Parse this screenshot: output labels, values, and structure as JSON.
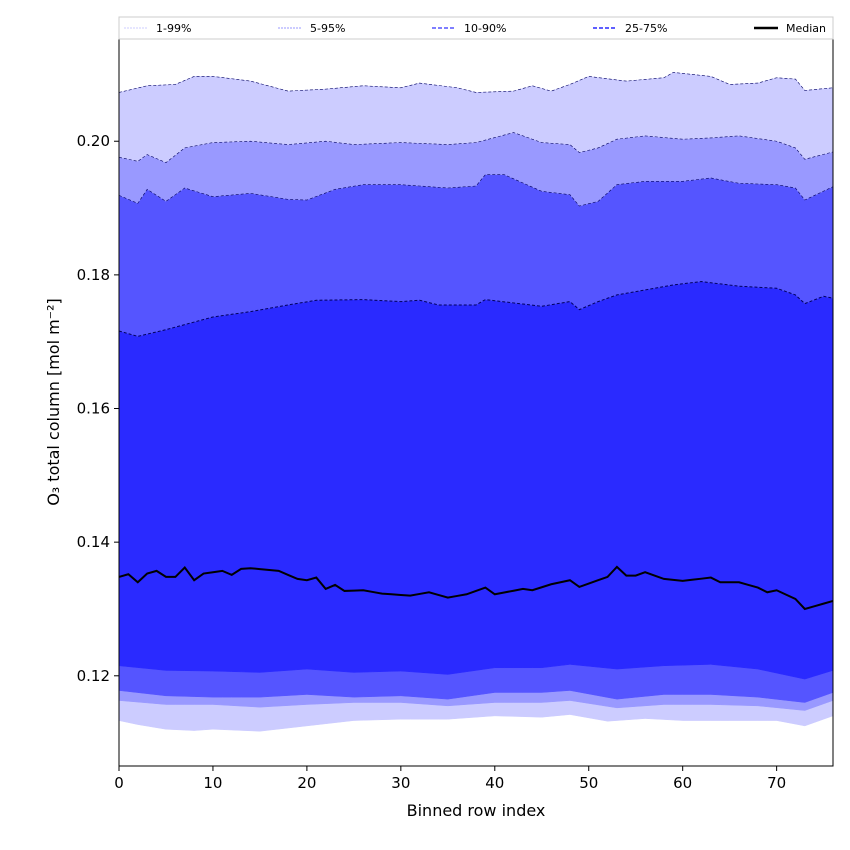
{
  "chart_data": {
    "type": "area",
    "xlabel": "Binned row index",
    "ylabel": "O₃ total column [mol m⁻²]",
    "xlim": [
      0,
      76
    ],
    "ylim": [
      0.1065,
      0.2153
    ],
    "xticks": [
      0,
      10,
      20,
      30,
      40,
      50,
      60,
      70
    ],
    "xtick_labels": [
      "0",
      "10",
      "20",
      "30",
      "40",
      "50",
      "60",
      "70"
    ],
    "yticks": [
      0.12,
      0.14,
      0.16,
      0.18,
      0.2
    ],
    "ytick_labels": [
      "0.12",
      "0.14",
      "0.16",
      "0.18",
      "0.20"
    ],
    "grid": false,
    "legend_placement": "top",
    "legend": [
      {
        "label": "1-99%",
        "color": "#ccccff",
        "style": "dashed"
      },
      {
        "label": "5-95%",
        "color": "#9999ff",
        "style": "dashed"
      },
      {
        "label": "10-90%",
        "color": "#5555ff",
        "style": "dashed"
      },
      {
        "label": "25-75%",
        "color": "#2a2aff",
        "style": "dashed"
      },
      {
        "label": "Median",
        "color": "#000000",
        "style": "solid"
      }
    ],
    "band_colors": {
      "1-99": "#ccccff",
      "5-95": "#9999ff",
      "10-90": "#5555ff",
      "25-75": "#2a2aff"
    },
    "series": {
      "p1": [
        [
          0,
          0.1133
        ],
        [
          2,
          0.1127
        ],
        [
          5,
          0.112
        ],
        [
          8,
          0.1118
        ],
        [
          10,
          0.112
        ],
        [
          15,
          0.1117
        ],
        [
          20,
          0.1125
        ],
        [
          25,
          0.1133
        ],
        [
          30,
          0.1135
        ],
        [
          35,
          0.1135
        ],
        [
          40,
          0.114
        ],
        [
          45,
          0.1138
        ],
        [
          48,
          0.1142
        ],
        [
          52,
          0.1132
        ],
        [
          56,
          0.1136
        ],
        [
          60,
          0.1133
        ],
        [
          65,
          0.1133
        ],
        [
          70,
          0.1133
        ],
        [
          73,
          0.1125
        ],
        [
          76,
          0.114
        ]
      ],
      "p5": [
        [
          0,
          0.1163
        ],
        [
          5,
          0.1157
        ],
        [
          10,
          0.1157
        ],
        [
          15,
          0.1153
        ],
        [
          20,
          0.1157
        ],
        [
          25,
          0.116
        ],
        [
          30,
          0.116
        ],
        [
          35,
          0.1155
        ],
        [
          40,
          0.116
        ],
        [
          45,
          0.116
        ],
        [
          48,
          0.1163
        ],
        [
          53,
          0.1152
        ],
        [
          58,
          0.1157
        ],
        [
          63,
          0.1157
        ],
        [
          68,
          0.1155
        ],
        [
          73,
          0.1148
        ],
        [
          76,
          0.1163
        ]
      ],
      "p10": [
        [
          0,
          0.1178
        ],
        [
          5,
          0.117
        ],
        [
          10,
          0.1168
        ],
        [
          15,
          0.1168
        ],
        [
          20,
          0.1172
        ],
        [
          25,
          0.1168
        ],
        [
          30,
          0.117
        ],
        [
          35,
          0.1165
        ],
        [
          40,
          0.1175
        ],
        [
          45,
          0.1175
        ],
        [
          48,
          0.1178
        ],
        [
          53,
          0.1165
        ],
        [
          58,
          0.1172
        ],
        [
          63,
          0.1172
        ],
        [
          68,
          0.1168
        ],
        [
          73,
          0.116
        ],
        [
          76,
          0.1175
        ]
      ],
      "p25": [
        [
          0,
          0.1215
        ],
        [
          5,
          0.1208
        ],
        [
          10,
          0.1207
        ],
        [
          15,
          0.1205
        ],
        [
          20,
          0.121
        ],
        [
          25,
          0.1205
        ],
        [
          30,
          0.1207
        ],
        [
          35,
          0.1202
        ],
        [
          40,
          0.1212
        ],
        [
          45,
          0.1212
        ],
        [
          48,
          0.1217
        ],
        [
          53,
          0.121
        ],
        [
          58,
          0.1215
        ],
        [
          63,
          0.1217
        ],
        [
          68,
          0.121
        ],
        [
          73,
          0.1195
        ],
        [
          76,
          0.1208
        ]
      ],
      "p75": [
        [
          0,
          0.1716
        ],
        [
          2,
          0.1708
        ],
        [
          5,
          0.1718
        ],
        [
          10,
          0.1737
        ],
        [
          14,
          0.1745
        ],
        [
          18,
          0.1755
        ],
        [
          21,
          0.1762
        ],
        [
          26,
          0.1763
        ],
        [
          30,
          0.176
        ],
        [
          32,
          0.1762
        ],
        [
          34,
          0.1755
        ],
        [
          38,
          0.1755
        ],
        [
          39,
          0.1763
        ],
        [
          42,
          0.1758
        ],
        [
          45,
          0.1753
        ],
        [
          48,
          0.176
        ],
        [
          49,
          0.1748
        ],
        [
          51,
          0.176
        ],
        [
          53,
          0.177
        ],
        [
          57,
          0.178
        ],
        [
          59,
          0.1785
        ],
        [
          62,
          0.179
        ],
        [
          66,
          0.1783
        ],
        [
          70,
          0.178
        ],
        [
          72,
          0.177
        ],
        [
          73,
          0.1757
        ],
        [
          75,
          0.1768
        ],
        [
          76,
          0.1765
        ]
      ],
      "p90": [
        [
          0,
          0.1919
        ],
        [
          2,
          0.1907
        ],
        [
          3,
          0.1928
        ],
        [
          5,
          0.191
        ],
        [
          7,
          0.193
        ],
        [
          10,
          0.1917
        ],
        [
          14,
          0.1922
        ],
        [
          18,
          0.1913
        ],
        [
          20,
          0.1912
        ],
        [
          23,
          0.1928
        ],
        [
          26,
          0.1935
        ],
        [
          30,
          0.1935
        ],
        [
          35,
          0.193
        ],
        [
          38,
          0.1933
        ],
        [
          39,
          0.195
        ],
        [
          41,
          0.195
        ],
        [
          45,
          0.1925
        ],
        [
          48,
          0.192
        ],
        [
          49,
          0.1903
        ],
        [
          51,
          0.191
        ],
        [
          53,
          0.1935
        ],
        [
          56,
          0.194
        ],
        [
          60,
          0.194
        ],
        [
          63,
          0.1945
        ],
        [
          66,
          0.1937
        ],
        [
          70,
          0.1935
        ],
        [
          72,
          0.193
        ],
        [
          73,
          0.1912
        ],
        [
          76,
          0.1932
        ]
      ],
      "p95": [
        [
          0,
          0.1976
        ],
        [
          2,
          0.197
        ],
        [
          3,
          0.198
        ],
        [
          5,
          0.1968
        ],
        [
          7,
          0.199
        ],
        [
          10,
          0.1998
        ],
        [
          14,
          0.2
        ],
        [
          18,
          0.1995
        ],
        [
          22,
          0.2
        ],
        [
          25,
          0.1995
        ],
        [
          30,
          0.1998
        ],
        [
          35,
          0.1995
        ],
        [
          38,
          0.1998
        ],
        [
          42,
          0.2013
        ],
        [
          45,
          0.1998
        ],
        [
          48,
          0.1995
        ],
        [
          49,
          0.1983
        ],
        [
          51,
          0.199
        ],
        [
          53,
          0.2003
        ],
        [
          56,
          0.2008
        ],
        [
          60,
          0.2003
        ],
        [
          63,
          0.2005
        ],
        [
          66,
          0.2008
        ],
        [
          70,
          0.2
        ],
        [
          72,
          0.199
        ],
        [
          73,
          0.1973
        ],
        [
          76,
          0.1984
        ]
      ],
      "p99": [
        [
          0,
          0.2073
        ],
        [
          3,
          0.2083
        ],
        [
          6,
          0.2085
        ],
        [
          8,
          0.2097
        ],
        [
          10,
          0.2097
        ],
        [
          14,
          0.209
        ],
        [
          18,
          0.2075
        ],
        [
          22,
          0.2078
        ],
        [
          26,
          0.2083
        ],
        [
          30,
          0.208
        ],
        [
          32,
          0.2087
        ],
        [
          36,
          0.208
        ],
        [
          38,
          0.2073
        ],
        [
          42,
          0.2075
        ],
        [
          44,
          0.2083
        ],
        [
          46,
          0.2075
        ],
        [
          48,
          0.2085
        ],
        [
          50,
          0.2097
        ],
        [
          54,
          0.209
        ],
        [
          58,
          0.2095
        ],
        [
          59,
          0.2103
        ],
        [
          63,
          0.2097
        ],
        [
          65,
          0.2085
        ],
        [
          68,
          0.2087
        ],
        [
          70,
          0.2095
        ],
        [
          72,
          0.2093
        ],
        [
          73,
          0.2076
        ],
        [
          76,
          0.208
        ]
      ],
      "median": [
        [
          0,
          0.1348
        ],
        [
          1,
          0.1352
        ],
        [
          2,
          0.134
        ],
        [
          3,
          0.1353
        ],
        [
          4,
          0.1357
        ],
        [
          5,
          0.1348
        ],
        [
          6,
          0.1348
        ],
        [
          7,
          0.1362
        ],
        [
          8,
          0.1343
        ],
        [
          9,
          0.1353
        ],
        [
          11,
          0.1357
        ],
        [
          12,
          0.1351
        ],
        [
          13,
          0.136
        ],
        [
          14,
          0.1361
        ],
        [
          17,
          0.1357
        ],
        [
          19,
          0.1345
        ],
        [
          20,
          0.1343
        ],
        [
          21,
          0.1347
        ],
        [
          22,
          0.133
        ],
        [
          23,
          0.1336
        ],
        [
          24,
          0.1327
        ],
        [
          26,
          0.1328
        ],
        [
          28,
          0.1323
        ],
        [
          31,
          0.132
        ],
        [
          33,
          0.1325
        ],
        [
          35,
          0.1317
        ],
        [
          37,
          0.1322
        ],
        [
          39,
          0.1332
        ],
        [
          40,
          0.1322
        ],
        [
          43,
          0.133
        ],
        [
          44,
          0.1328
        ],
        [
          46,
          0.1337
        ],
        [
          48,
          0.1343
        ],
        [
          49,
          0.1333
        ],
        [
          51,
          0.1343
        ],
        [
          52,
          0.1348
        ],
        [
          53,
          0.1363
        ],
        [
          54,
          0.135
        ],
        [
          55,
          0.135
        ],
        [
          56,
          0.1355
        ],
        [
          58,
          0.1345
        ],
        [
          60,
          0.1342
        ],
        [
          63,
          0.1347
        ],
        [
          64,
          0.134
        ],
        [
          66,
          0.134
        ],
        [
          68,
          0.1332
        ],
        [
          69,
          0.1325
        ],
        [
          70,
          0.1328
        ],
        [
          72,
          0.1315
        ],
        [
          73,
          0.13
        ],
        [
          76,
          0.1312
        ]
      ]
    }
  }
}
